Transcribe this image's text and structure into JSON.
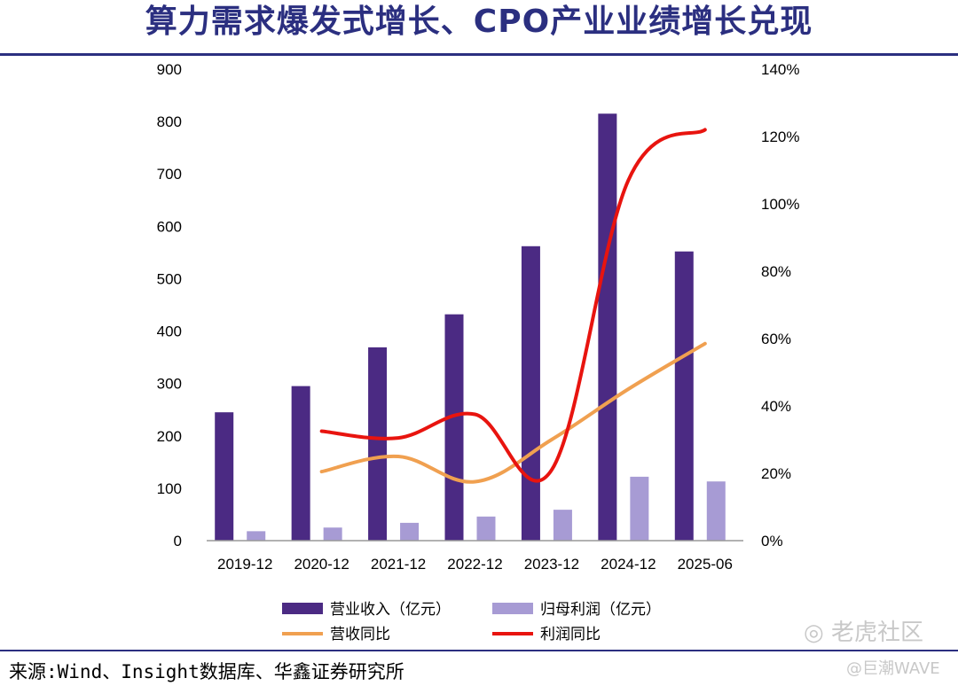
{
  "page": {
    "title": "算力需求爆发式增长、CPO产业业绩增长兑现",
    "source": "来源:Wind、Insight数据库、华鑫证券研究所",
    "watermark_main": "老虎社区",
    "watermark_sub": "@巨潮WAVE"
  },
  "colors": {
    "title": "#2b2f80",
    "revenue_bar": "#4b2a83",
    "profit_bar": "#a79bd4",
    "revenue_yoy_line": "#f0a050",
    "profit_yoy_line": "#e8140f"
  },
  "chart_data": {
    "type": "bar+line",
    "categories": [
      "2019-12",
      "2020-12",
      "2021-12",
      "2022-12",
      "2023-12",
      "2024-12",
      "2025-06"
    ],
    "left_axis": {
      "ylim": [
        0,
        900
      ],
      "ticks": [
        "0",
        "100",
        "200",
        "300",
        "400",
        "500",
        "600",
        "700",
        "800",
        "900"
      ]
    },
    "right_axis": {
      "ylim": [
        0,
        140
      ],
      "ticks": [
        "0%",
        "20%",
        "40%",
        "60%",
        "80%",
        "100%",
        "120%",
        "140%"
      ]
    },
    "series": [
      {
        "name": "营业收入（亿元）",
        "kind": "bar",
        "axis": "left",
        "values": [
          245,
          295,
          369,
          432,
          562,
          815,
          552
        ]
      },
      {
        "name": "归母利润（亿元）",
        "kind": "bar",
        "axis": "left",
        "values": [
          18,
          25,
          34,
          46,
          59,
          122,
          113
        ]
      },
      {
        "name": "营收同比",
        "kind": "line",
        "axis": "right",
        "values": [
          null,
          20.5,
          25,
          17.5,
          30,
          45,
          58.5
        ]
      },
      {
        "name": "利润同比",
        "kind": "line",
        "axis": "right",
        "values": [
          null,
          32.5,
          30.5,
          37.5,
          21,
          107,
          122
        ]
      }
    ],
    "legend_position": "bottom"
  }
}
